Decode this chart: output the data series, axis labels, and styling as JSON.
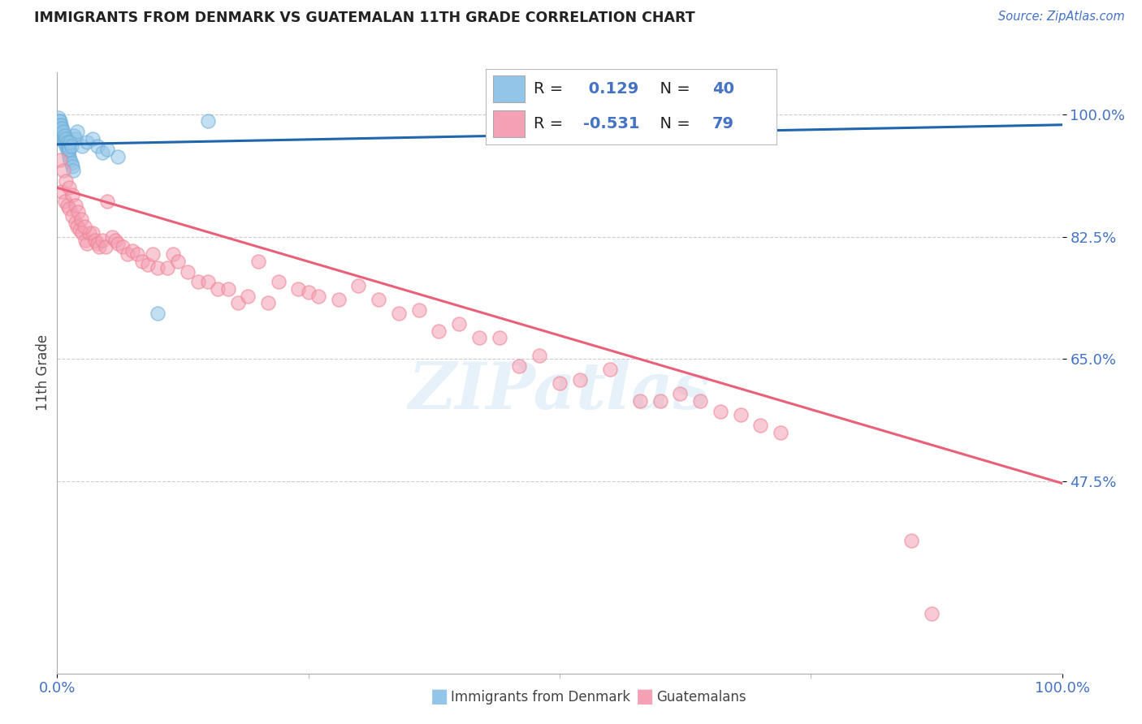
{
  "title": "IMMIGRANTS FROM DENMARK VS GUATEMALAN 11TH GRADE CORRELATION CHART",
  "source": "Source: ZipAtlas.com",
  "ylabel": "11th Grade",
  "ytick_labels": [
    "100.0%",
    "82.5%",
    "65.0%",
    "47.5%"
  ],
  "ytick_values": [
    1.0,
    0.825,
    0.65,
    0.475
  ],
  "legend_blue_r": "0.129",
  "legend_blue_n": "40",
  "legend_pink_r": "-0.531",
  "legend_pink_n": "79",
  "blue_color": "#92C5E8",
  "pink_color": "#F4A0B5",
  "blue_edge_color": "#6BAED6",
  "pink_edge_color": "#F08090",
  "blue_line_color": "#2166AC",
  "pink_line_color": "#E8607A",
  "watermark_color": "#D0E4F5",
  "grid_color": "#CCCCCC",
  "blue_line_start_x": 0.0,
  "blue_line_start_y": 0.957,
  "blue_line_end_x": 1.0,
  "blue_line_end_y": 0.985,
  "pink_line_start_x": 0.0,
  "pink_line_start_y": 0.895,
  "pink_line_end_x": 1.0,
  "pink_line_end_y": 0.472,
  "blue_points_x": [
    0.001,
    0.002,
    0.003,
    0.004,
    0.005,
    0.006,
    0.007,
    0.008,
    0.009,
    0.01,
    0.011,
    0.012,
    0.013,
    0.014,
    0.015,
    0.016,
    0.017,
    0.018,
    0.003,
    0.004,
    0.005,
    0.006,
    0.007,
    0.008,
    0.009,
    0.01,
    0.011,
    0.012,
    0.013,
    0.014,
    0.02,
    0.025,
    0.03,
    0.035,
    0.04,
    0.045,
    0.05,
    0.06,
    0.1,
    0.15
  ],
  "blue_points_y": [
    0.995,
    0.99,
    0.985,
    0.98,
    0.975,
    0.97,
    0.965,
    0.96,
    0.955,
    0.95,
    0.945,
    0.94,
    0.935,
    0.93,
    0.925,
    0.92,
    0.97,
    0.965,
    0.99,
    0.985,
    0.98,
    0.975,
    0.96,
    0.97,
    0.965,
    0.96,
    0.955,
    0.95,
    0.96,
    0.955,
    0.975,
    0.955,
    0.96,
    0.965,
    0.955,
    0.945,
    0.95,
    0.94,
    0.715,
    0.99
  ],
  "pink_points_x": [
    0.005,
    0.008,
    0.01,
    0.012,
    0.015,
    0.018,
    0.02,
    0.022,
    0.025,
    0.028,
    0.03,
    0.032,
    0.035,
    0.038,
    0.04,
    0.042,
    0.045,
    0.048,
    0.05,
    0.055,
    0.058,
    0.06,
    0.065,
    0.07,
    0.075,
    0.08,
    0.085,
    0.09,
    0.095,
    0.1,
    0.11,
    0.115,
    0.12,
    0.13,
    0.14,
    0.15,
    0.16,
    0.17,
    0.18,
    0.19,
    0.2,
    0.21,
    0.22,
    0.24,
    0.25,
    0.26,
    0.28,
    0.3,
    0.32,
    0.34,
    0.36,
    0.38,
    0.4,
    0.42,
    0.44,
    0.46,
    0.48,
    0.5,
    0.52,
    0.55,
    0.58,
    0.6,
    0.62,
    0.64,
    0.66,
    0.68,
    0.7,
    0.72,
    0.85,
    0.87,
    0.003,
    0.006,
    0.009,
    0.012,
    0.015,
    0.018,
    0.021,
    0.024,
    0.027
  ],
  "pink_points_y": [
    0.89,
    0.875,
    0.87,
    0.865,
    0.855,
    0.845,
    0.84,
    0.835,
    0.83,
    0.82,
    0.815,
    0.83,
    0.83,
    0.82,
    0.815,
    0.81,
    0.82,
    0.81,
    0.875,
    0.825,
    0.82,
    0.815,
    0.81,
    0.8,
    0.805,
    0.8,
    0.79,
    0.785,
    0.8,
    0.78,
    0.78,
    0.8,
    0.79,
    0.775,
    0.76,
    0.76,
    0.75,
    0.75,
    0.73,
    0.74,
    0.79,
    0.73,
    0.76,
    0.75,
    0.745,
    0.74,
    0.735,
    0.755,
    0.735,
    0.715,
    0.72,
    0.69,
    0.7,
    0.68,
    0.68,
    0.64,
    0.655,
    0.615,
    0.62,
    0.635,
    0.59,
    0.59,
    0.6,
    0.59,
    0.575,
    0.57,
    0.555,
    0.545,
    0.39,
    0.285,
    0.935,
    0.92,
    0.905,
    0.895,
    0.885,
    0.87,
    0.86,
    0.85,
    0.84
  ],
  "xmin": 0.0,
  "xmax": 1.0,
  "ymin": 0.2,
  "ymax": 1.06
}
